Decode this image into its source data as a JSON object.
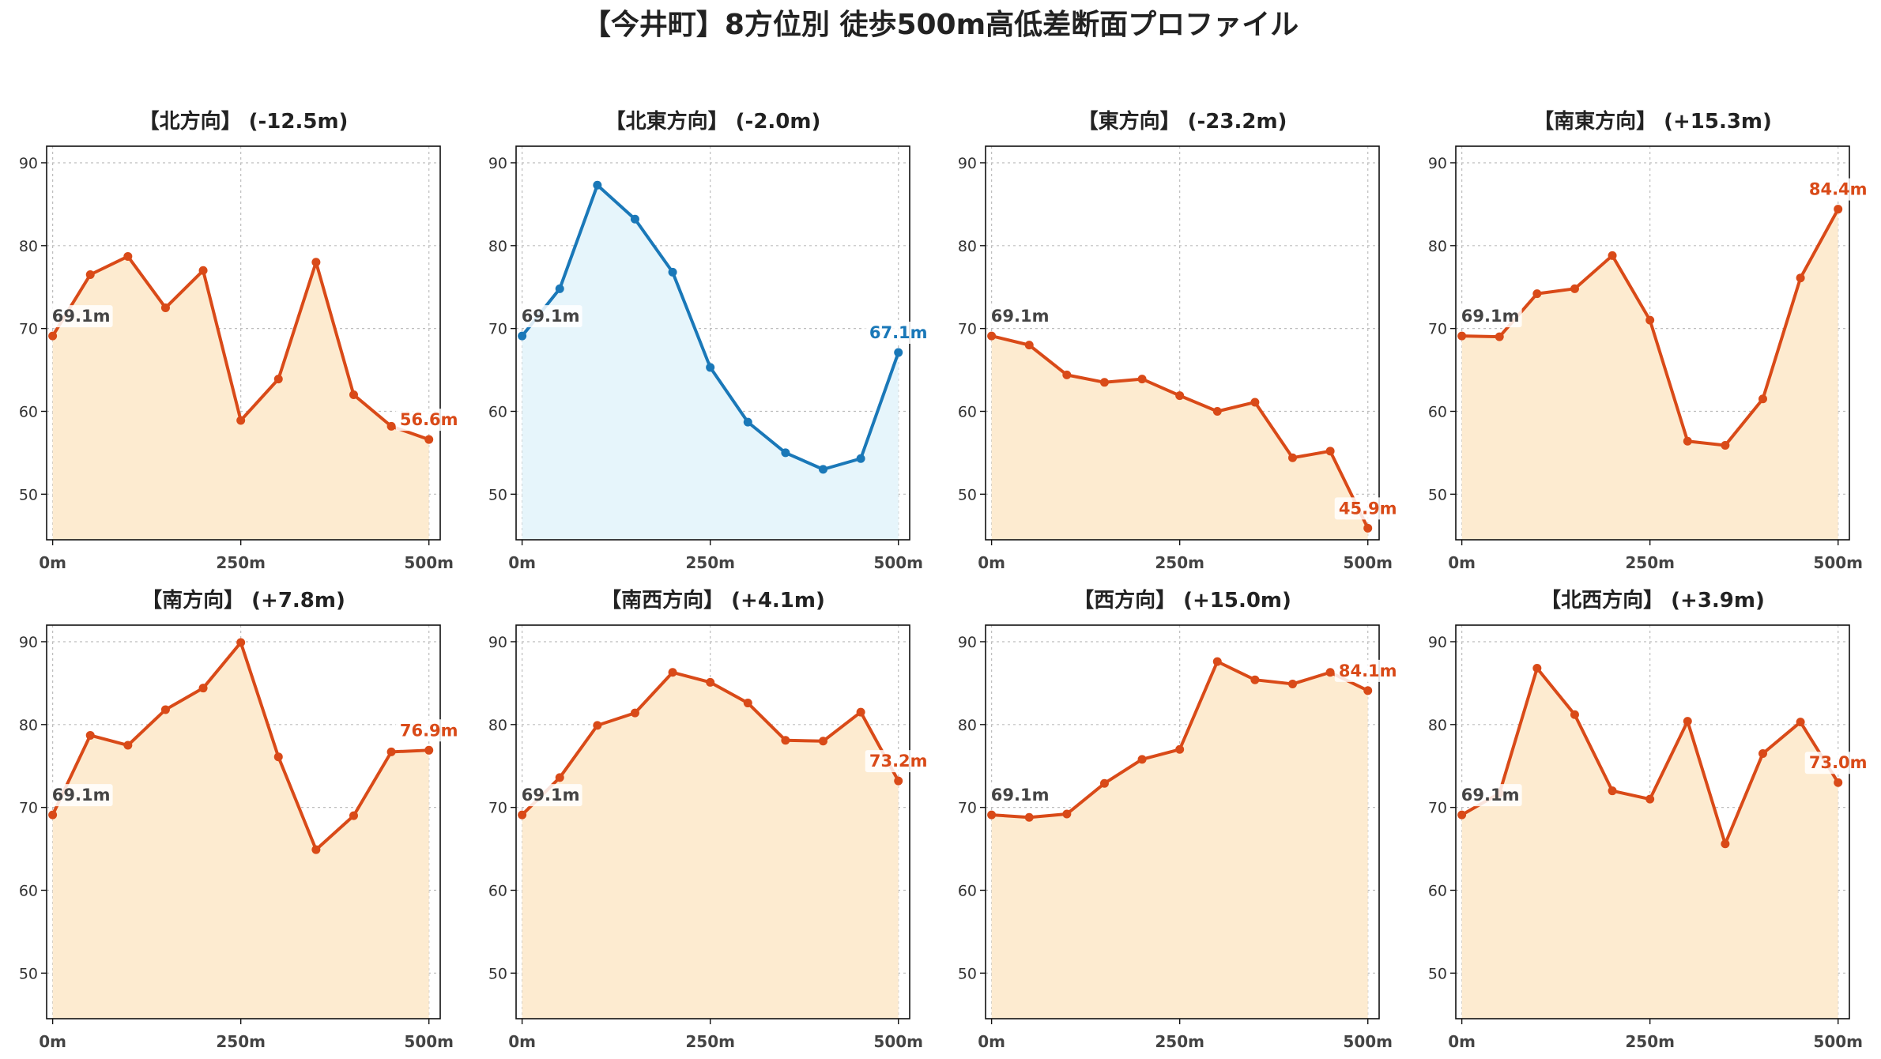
{
  "title": "【今井町】8方位別 徒歩500m高低差断面プロファイル",
  "colors": {
    "uphill_line": "#d94a18",
    "uphill_fill": "#fdebd0",
    "downhill_line": "#1a78b8",
    "downhill_fill": "#e6f5fb",
    "start_label": "#444444"
  },
  "chart_data": [
    {
      "type": "area",
      "title": "【北方向】 (-12.5m)",
      "x": [
        0,
        50,
        100,
        150,
        200,
        250,
        300,
        350,
        400,
        450,
        500
      ],
      "y": [
        69.1,
        76.5,
        78.7,
        72.5,
        77.0,
        58.9,
        63.9,
        78.0,
        62.0,
        58.2,
        56.6
      ],
      "ylim": [
        44.5,
        92
      ],
      "xlim": [
        -8,
        515
      ],
      "yticks": [
        50,
        60,
        70,
        80,
        90
      ],
      "xticks": [
        0,
        250,
        500
      ],
      "xtick_labels": [
        "0m",
        "250m",
        "500m"
      ],
      "start_label": "69.1m",
      "end_label": "56.6m",
      "style": "uphill",
      "grid": true
    },
    {
      "type": "area",
      "title": "【北東方向】 (-2.0m)",
      "x": [
        0,
        50,
        100,
        150,
        200,
        250,
        300,
        350,
        400,
        450,
        500
      ],
      "y": [
        69.1,
        74.8,
        87.3,
        83.2,
        76.8,
        65.3,
        58.7,
        55.0,
        53.0,
        54.3,
        67.1
      ],
      "ylim": [
        44.5,
        92
      ],
      "xlim": [
        -8,
        515
      ],
      "yticks": [
        50,
        60,
        70,
        80,
        90
      ],
      "xticks": [
        0,
        250,
        500
      ],
      "xtick_labels": [
        "0m",
        "250m",
        "500m"
      ],
      "start_label": "69.1m",
      "end_label": "67.1m",
      "style": "downhill",
      "grid": true
    },
    {
      "type": "area",
      "title": "【東方向】 (-23.2m)",
      "x": [
        0,
        50,
        100,
        150,
        200,
        250,
        300,
        350,
        400,
        450,
        500
      ],
      "y": [
        69.1,
        68.0,
        64.4,
        63.5,
        63.9,
        61.9,
        60.0,
        61.1,
        54.4,
        55.2,
        45.9
      ],
      "ylim": [
        44.5,
        92
      ],
      "xlim": [
        -8,
        515
      ],
      "yticks": [
        50,
        60,
        70,
        80,
        90
      ],
      "xticks": [
        0,
        250,
        500
      ],
      "xtick_labels": [
        "0m",
        "250m",
        "500m"
      ],
      "start_label": "69.1m",
      "end_label": "45.9m",
      "style": "uphill",
      "grid": true
    },
    {
      "type": "area",
      "title": "【南東方向】 (+15.3m)",
      "x": [
        0,
        50,
        100,
        150,
        200,
        250,
        300,
        350,
        400,
        450,
        500
      ],
      "y": [
        69.1,
        69.0,
        74.2,
        74.8,
        78.8,
        71.0,
        56.4,
        55.9,
        61.5,
        76.1,
        84.4
      ],
      "ylim": [
        44.5,
        92
      ],
      "xlim": [
        -8,
        515
      ],
      "yticks": [
        50,
        60,
        70,
        80,
        90
      ],
      "xticks": [
        0,
        250,
        500
      ],
      "xtick_labels": [
        "0m",
        "250m",
        "500m"
      ],
      "start_label": "69.1m",
      "end_label": "84.4m",
      "style": "uphill",
      "grid": true
    },
    {
      "type": "area",
      "title": "【南方向】 (+7.8m)",
      "x": [
        0,
        50,
        100,
        150,
        200,
        250,
        300,
        350,
        400,
        450,
        500
      ],
      "y": [
        69.1,
        78.7,
        77.5,
        81.8,
        84.4,
        89.9,
        76.1,
        64.9,
        69.0,
        76.7,
        76.9
      ],
      "ylim": [
        44.5,
        92
      ],
      "xlim": [
        -8,
        515
      ],
      "yticks": [
        50,
        60,
        70,
        80,
        90
      ],
      "xticks": [
        0,
        250,
        500
      ],
      "xtick_labels": [
        "0m",
        "250m",
        "500m"
      ],
      "start_label": "69.1m",
      "end_label": "76.9m",
      "style": "uphill",
      "grid": true
    },
    {
      "type": "area",
      "title": "【南西方向】 (+4.1m)",
      "x": [
        0,
        50,
        100,
        150,
        200,
        250,
        300,
        350,
        400,
        450,
        500
      ],
      "y": [
        69.1,
        73.6,
        79.9,
        81.4,
        86.3,
        85.1,
        82.6,
        78.1,
        78.0,
        81.5,
        73.2
      ],
      "ylim": [
        44.5,
        92
      ],
      "xlim": [
        -8,
        515
      ],
      "yticks": [
        50,
        60,
        70,
        80,
        90
      ],
      "xticks": [
        0,
        250,
        500
      ],
      "xtick_labels": [
        "0m",
        "250m",
        "500m"
      ],
      "start_label": "69.1m",
      "end_label": "73.2m",
      "style": "uphill",
      "grid": true
    },
    {
      "type": "area",
      "title": "【西方向】 (+15.0m)",
      "x": [
        0,
        50,
        100,
        150,
        200,
        250,
        300,
        350,
        400,
        450,
        500
      ],
      "y": [
        69.1,
        68.8,
        69.2,
        72.9,
        75.8,
        77.0,
        87.6,
        85.4,
        84.9,
        86.3,
        84.1
      ],
      "ylim": [
        44.5,
        92
      ],
      "xlim": [
        -8,
        515
      ],
      "yticks": [
        50,
        60,
        70,
        80,
        90
      ],
      "xticks": [
        0,
        250,
        500
      ],
      "xtick_labels": [
        "0m",
        "250m",
        "500m"
      ],
      "start_label": "69.1m",
      "end_label": "84.1m",
      "style": "uphill",
      "grid": true
    },
    {
      "type": "area",
      "title": "【北西方向】 (+3.9m)",
      "x": [
        0,
        50,
        100,
        150,
        200,
        250,
        300,
        350,
        400,
        450,
        500
      ],
      "y": [
        69.1,
        71.7,
        86.8,
        81.2,
        72.0,
        71.0,
        80.4,
        65.6,
        76.5,
        80.3,
        73.0
      ],
      "ylim": [
        44.5,
        92
      ],
      "xlim": [
        -8,
        515
      ],
      "yticks": [
        50,
        60,
        70,
        80,
        90
      ],
      "xticks": [
        0,
        250,
        500
      ],
      "xtick_labels": [
        "0m",
        "250m",
        "500m"
      ],
      "start_label": "69.1m",
      "end_label": "73.0m",
      "style": "uphill",
      "grid": true
    }
  ]
}
